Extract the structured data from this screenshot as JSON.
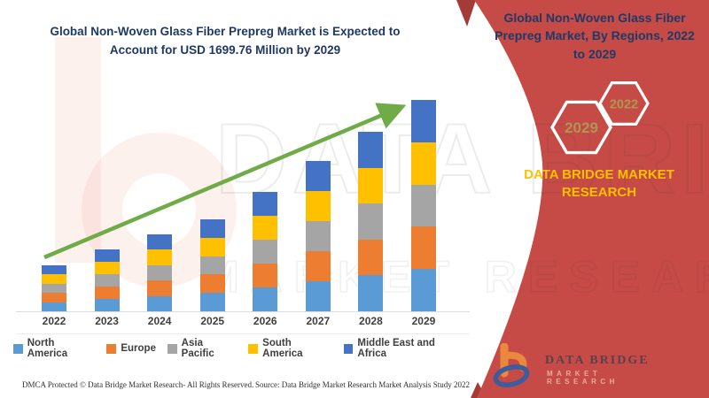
{
  "main_title": "Global Non-Woven Glass Fiber Prepreg Market is Expected to Account for USD 1699.76 Million by 2029",
  "side_panel": {
    "title": "Global Non-Woven Glass Fiber Prepreg Market, By Regions, 2022 to 2029",
    "accent_color": "#C64A45",
    "accent_dark_color": "#A43B37",
    "hexagons": [
      {
        "label": "2029"
      },
      {
        "label": "2022"
      }
    ],
    "brand_text": "DATA BRIDGE MARKET RESEARCH",
    "brand_text_color": "#FFC000",
    "logo": {
      "line1": "DATA BRIDGE",
      "line2": "MARKET RESEARCH"
    }
  },
  "watermark": {
    "primary": "DATA BRIDGE",
    "secondary": "MARKET RESEARCH"
  },
  "chart_data": {
    "type": "bar",
    "stacked": true,
    "title": "Global Non-Woven Glass Fiber Prepreg Market is Expected to Account for USD 1699.76 Million by 2029",
    "xlabel": "",
    "ylabel": "",
    "y_axis_visible": false,
    "grid": false,
    "legend_position": "bottom",
    "units": "USD Million (estimated from bar heights; only 2029 total labeled in title)",
    "categories": [
      "2022",
      "2023",
      "2024",
      "2025",
      "2026",
      "2027",
      "2028",
      "2029"
    ],
    "series": [
      {
        "name": "North America",
        "color": "#5B9BD5",
        "values": [
          74,
          100,
          124,
          148,
          193,
          242,
          289,
          340
        ]
      },
      {
        "name": "Europe",
        "color": "#ED7D31",
        "values": [
          74,
          100,
          124,
          148,
          193,
          242,
          289,
          340
        ]
      },
      {
        "name": "Asia Pacific",
        "color": "#A5A5A5",
        "values": [
          74,
          100,
          124,
          148,
          193,
          242,
          289,
          340
        ]
      },
      {
        "name": "South America",
        "color": "#FFC000",
        "values": [
          74,
          100,
          124,
          148,
          193,
          242,
          289,
          340
        ]
      },
      {
        "name": "Middle East and Africa",
        "color": "#4472C4",
        "values": [
          74,
          100,
          124,
          148,
          193,
          242,
          289,
          340
        ]
      }
    ],
    "totals_estimated": [
      370,
      500,
      620,
      740,
      965,
      1210,
      1445,
      1699.76
    ],
    "stated_value_2029": 1699.76,
    "trend_arrow": true,
    "trend_arrow_color": "#6FAC47"
  },
  "footer": {
    "left": "DMCA Protected © Data Bridge Market Research- All Rights Reserved.",
    "right": "Source: Data Bridge Market Research Market Analysis Study 2022"
  }
}
